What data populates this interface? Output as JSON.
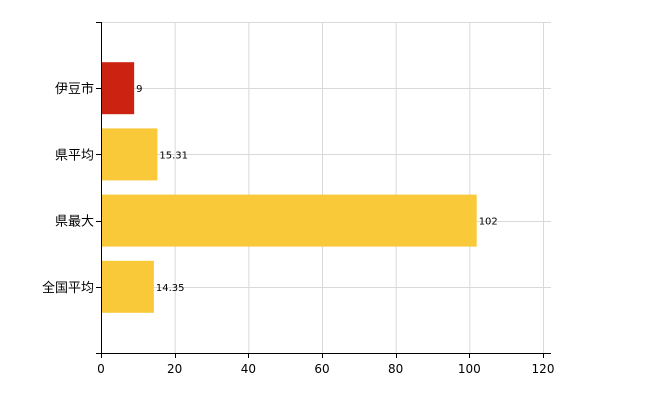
{
  "chart_data": {
    "type": "bar",
    "orientation": "horizontal",
    "categories": [
      "伊豆市",
      "県平均",
      "県最大",
      "全国平均"
    ],
    "values": [
      9,
      15.31,
      102,
      14.35
    ],
    "value_labels": [
      "9",
      "15.31",
      "102",
      "14.35"
    ],
    "colors": [
      "#cc2211",
      "#f9c93a",
      "#f9c93a",
      "#f9c93a"
    ],
    "xlim": [
      0,
      120
    ],
    "xticks": [
      0,
      20,
      40,
      60,
      80,
      100,
      120
    ],
    "grid": true,
    "title": "",
    "xlabel": "",
    "ylabel": ""
  }
}
